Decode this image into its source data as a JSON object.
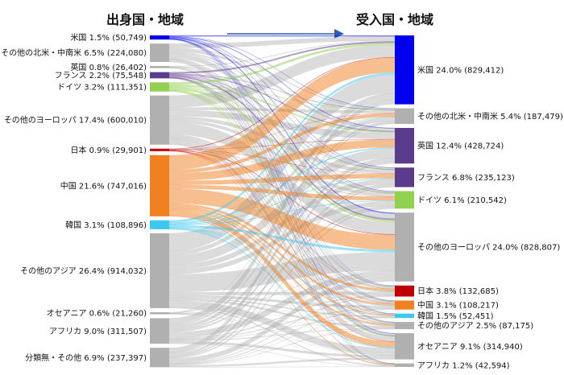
{
  "titles": {
    "origin": "出身国・地域",
    "destination": "受入国・地域"
  },
  "colors": {
    "usa": "#0000ee",
    "france": "#5b3c8c",
    "germany": "#92d050",
    "japan": "#c00000",
    "china": "#f08020",
    "korea": "#3cc8f0",
    "other": "#b0b0b0",
    "arrow": "#2a5db0"
  },
  "origins": [
    {
      "key": "usa",
      "label": "米国 1.5% (50,749)",
      "value": 50749
    },
    {
      "key": "other",
      "label": "その他の北米・中南米 6.5% (224,080)",
      "value": 224080
    },
    {
      "key": "other",
      "label": "英国 0.8% (26,402)",
      "value": 26402
    },
    {
      "key": "france",
      "label": "フランス 2.2% (75,548)",
      "value": 75548
    },
    {
      "key": "germany",
      "label": "ドイツ 3.2% (111,351)",
      "value": 111351
    },
    {
      "key": "other",
      "label": "その他のヨーロッパ 17.4% (600,010)",
      "value": 600010
    },
    {
      "key": "japan",
      "label": "日本 0.9% (29,901)",
      "value": 29901
    },
    {
      "key": "china",
      "label": "中国 21.6% (747,016)",
      "value": 747016
    },
    {
      "key": "korea",
      "label": "韓国 3.1% (108,896)",
      "value": 108896
    },
    {
      "key": "other",
      "label": "その他のアジア 26.4% (914,032)",
      "value": 914032
    },
    {
      "key": "other",
      "label": "オセアニア 0.6% (21,260)",
      "value": 21260
    },
    {
      "key": "other",
      "label": "アフリカ 9.0% (311,507)",
      "value": 311507
    },
    {
      "key": "other",
      "label": "分類無・その他 6.9% (237,397)",
      "value": 237397
    }
  ],
  "destinations": [
    {
      "key": "usa",
      "label": "米国 24.0% (829,412)",
      "value": 829412
    },
    {
      "key": "other",
      "label": "その他の北米・中南米 5.4% (187,479)",
      "value": 187479
    },
    {
      "key": "france",
      "label": "英国 12.4% (428,724)",
      "value": 428724
    },
    {
      "key": "france",
      "label": "フランス 6.8% (235,123)",
      "value": 235123
    },
    {
      "key": "germany",
      "label": "ドイツ 6.1% (210,542)",
      "value": 210542
    },
    {
      "key": "other",
      "label": "その他のヨーロッパ 24.0% (828,807)",
      "value": 828807
    },
    {
      "key": "japan",
      "label": "日本 3.8% (132,685)",
      "value": 132685
    },
    {
      "key": "china",
      "label": "中国 3.1% (108,217)",
      "value": 108217
    },
    {
      "key": "korea",
      "label": "韓国 1.5% (52,451)",
      "value": 52451
    },
    {
      "key": "other",
      "label": "その他のアジア 2.5% (87,175)",
      "value": 87175
    },
    {
      "key": "other",
      "label": "オセアニア 9.1% (314,940)",
      "value": 314940
    },
    {
      "key": "other",
      "label": "アフリカ 1.2% (42,594)",
      "value": 42594
    }
  ]
}
